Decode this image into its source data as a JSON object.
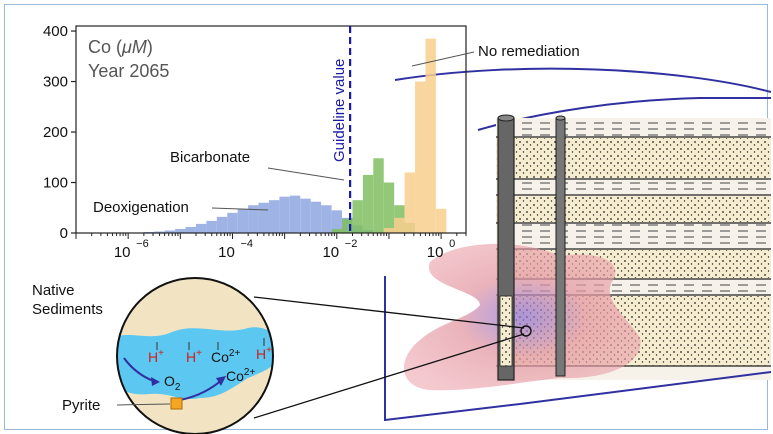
{
  "chart_data": {
    "type": "bar",
    "subtitle_line1": "Co (",
    "subtitle_unit": "μM",
    "subtitle_line1_end": ")",
    "subtitle_line2": "Year 2065",
    "x_scale": "log",
    "xlim": [
      1e-07,
      3
    ],
    "ylim": [
      0,
      410
    ],
    "x_ticks": [
      {
        "base": "10",
        "exp": "−6",
        "value": 1e-06
      },
      {
        "base": "10",
        "exp": "−4",
        "value": 0.0001
      },
      {
        "base": "10",
        "exp": "−2",
        "value": 0.01
      },
      {
        "base": "10",
        "exp": "0",
        "value": 1
      }
    ],
    "y_ticks": [
      0,
      100,
      200,
      300,
      400
    ],
    "guideline": {
      "label": "Guideline value",
      "x": 0.018,
      "color": "#1a1aa8"
    },
    "series": [
      {
        "name": "Deoxigenation",
        "color": "#8fa8e0",
        "bins": [
          [
            -6.0,
            1
          ],
          [
            -5.8,
            1
          ],
          [
            -5.6,
            2
          ],
          [
            -5.4,
            3
          ],
          [
            -5.2,
            5
          ],
          [
            -5.0,
            8
          ],
          [
            -4.8,
            12
          ],
          [
            -4.6,
            18
          ],
          [
            -4.4,
            24
          ],
          [
            -4.2,
            32
          ],
          [
            -4.0,
            40
          ],
          [
            -3.8,
            48
          ],
          [
            -3.6,
            55
          ],
          [
            -3.4,
            60
          ],
          [
            -3.2,
            65
          ],
          [
            -3.0,
            72
          ],
          [
            -2.8,
            74
          ],
          [
            -2.6,
            68
          ],
          [
            -2.4,
            62
          ],
          [
            -2.2,
            55
          ],
          [
            -2.0,
            45
          ],
          [
            -1.8,
            30
          ],
          [
            -1.6,
            15
          ],
          [
            -1.4,
            6
          ]
        ]
      },
      {
        "name": "Bicarbonate",
        "color": "#7fbf60",
        "bins": [
          [
            -2.0,
            8
          ],
          [
            -1.8,
            28
          ],
          [
            -1.6,
            65
          ],
          [
            -1.4,
            115
          ],
          [
            -1.2,
            148
          ],
          [
            -1.0,
            100
          ],
          [
            -0.8,
            55
          ],
          [
            -0.6,
            20
          ]
        ]
      },
      {
        "name": "No remediation",
        "color": "#f9cf8e",
        "bins": [
          [
            -1.0,
            10
          ],
          [
            -0.8,
            30
          ],
          [
            -0.6,
            120
          ],
          [
            -0.4,
            300
          ],
          [
            -0.2,
            385
          ],
          [
            0.0,
            48
          ]
        ]
      }
    ],
    "bin_width_log10": 0.2,
    "annotations": [
      "Deoxigenation",
      "Bicarbonate",
      "No remediation"
    ]
  },
  "diagram": {
    "native_sediments_line1": "Native",
    "native_sediments_line2": "Sediments",
    "pyrite": "Pyrite",
    "h_plus": "H",
    "plus": "+",
    "co2_plus": "Co",
    "charge_2plus": "2+",
    "o2": "O",
    "o2_sub": "2",
    "colors": {
      "water": "#5cc7f0",
      "sediment": "#f2e4c2",
      "plume": "#e9a0a8",
      "acid": "#d0201e",
      "frame": "#3030a0"
    }
  }
}
